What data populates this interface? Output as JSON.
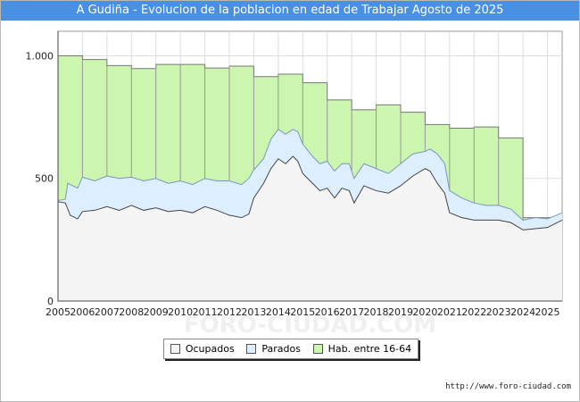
{
  "title": "A Gudiña - Evolucion de la poblacion en edad de Trabajar Agosto de 2025",
  "source_url": "http://www.foro-ciudad.com",
  "watermark": "FORO-CIUDAD.COM",
  "colors": {
    "title_bar": "#4a90e2",
    "hab": "#ccf5b0",
    "hab_line": "#777777",
    "parados": "#ddeeff",
    "parados_line": "#7799bb",
    "ocupados": "#f4f4f4",
    "ocupados_line": "#444444",
    "grid": "#dddddd"
  },
  "legend": {
    "ocupados": "Ocupados",
    "parados": "Parados",
    "hab": "Hab. entre 16-64"
  },
  "chart_data": {
    "type": "area",
    "xlabel": "",
    "ylabel": "",
    "xlim": [
      2005,
      2025.6
    ],
    "ylim": [
      0,
      1100
    ],
    "y_ticks": [
      0,
      500,
      1000
    ],
    "y_tick_labels": [
      "0",
      "500",
      "1.000"
    ],
    "x_ticks": [
      2005,
      2006,
      2007,
      2008,
      2009,
      2010,
      2011,
      2012,
      2013,
      2014,
      2015,
      2016,
      2017,
      2018,
      2019,
      2020,
      2021,
      2022,
      2023,
      2024,
      2025
    ],
    "x_tick_labels": [
      "2005",
      "2006",
      "2007",
      "2008",
      "2009",
      "2010",
      "2011",
      "2012",
      "2013",
      "2014",
      "2015",
      "2016",
      "2017",
      "2018",
      "2019",
      "2020",
      "2021",
      "2022",
      "2023",
      "2024",
      "2025"
    ],
    "series": [
      {
        "name": "Hab. entre 16-64",
        "kind": "step",
        "x": [
          2005,
          2006,
          2007,
          2008,
          2009,
          2010,
          2011,
          2012,
          2013,
          2014,
          2015,
          2016,
          2017,
          2018,
          2019,
          2020,
          2021,
          2022,
          2023,
          2024
        ],
        "values": [
          1000,
          985,
          960,
          948,
          965,
          965,
          950,
          958,
          915,
          925,
          890,
          820,
          780,
          800,
          770,
          720,
          705,
          710,
          665,
          340
        ]
      },
      {
        "name": "Parados",
        "kind": "line",
        "x": [
          2005,
          2005.3,
          2005.4,
          2005.6,
          2005.8,
          2006,
          2006.5,
          2007,
          2007.5,
          2008,
          2008.5,
          2009,
          2009.5,
          2010,
          2010.5,
          2011,
          2011.5,
          2012,
          2012.5,
          2012.8,
          2013,
          2013.4,
          2013.7,
          2014,
          2014.3,
          2014.6,
          2014.8,
          2015,
          2015.4,
          2015.7,
          2016,
          2016.3,
          2016.6,
          2016.9,
          2017.1,
          2017.5,
          2018,
          2018.5,
          2019,
          2019.5,
          2020,
          2020.2,
          2020.5,
          2020.8,
          2021,
          2021.5,
          2022,
          2022.5,
          2023,
          2023.5,
          2024,
          2024.5,
          2025,
          2025.6
        ],
        "values": [
          410,
          415,
          480,
          470,
          460,
          505,
          490,
          510,
          500,
          505,
          490,
          500,
          480,
          490,
          475,
          500,
          490,
          490,
          475,
          500,
          535,
          580,
          660,
          700,
          680,
          700,
          690,
          640,
          590,
          560,
          570,
          530,
          560,
          560,
          500,
          560,
          540,
          520,
          560,
          600,
          610,
          620,
          600,
          560,
          450,
          420,
          400,
          390,
          390,
          375,
          330,
          340,
          335,
          360
        ]
      },
      {
        "name": "Ocupados",
        "kind": "line",
        "x": [
          2005,
          2005.3,
          2005.5,
          2005.8,
          2006,
          2006.5,
          2007,
          2007.5,
          2008,
          2008.5,
          2009,
          2009.5,
          2010,
          2010.5,
          2011,
          2011.5,
          2012,
          2012.5,
          2012.8,
          2013,
          2013.4,
          2013.7,
          2014,
          2014.3,
          2014.6,
          2014.8,
          2015,
          2015.4,
          2015.7,
          2016,
          2016.3,
          2016.6,
          2016.9,
          2017.1,
          2017.5,
          2018,
          2018.5,
          2019,
          2019.5,
          2020,
          2020.2,
          2020.5,
          2020.8,
          2021,
          2021.5,
          2022,
          2022.5,
          2023,
          2023.5,
          2024,
          2024.5,
          2025,
          2025.6
        ],
        "values": [
          405,
          400,
          350,
          335,
          365,
          370,
          385,
          370,
          390,
          370,
          380,
          365,
          370,
          360,
          385,
          370,
          350,
          340,
          355,
          420,
          480,
          540,
          580,
          560,
          590,
          570,
          520,
          480,
          450,
          460,
          420,
          460,
          450,
          400,
          470,
          450,
          440,
          470,
          510,
          540,
          530,
          480,
          440,
          360,
          340,
          330,
          330,
          330,
          320,
          290,
          295,
          300,
          330
        ]
      }
    ]
  }
}
